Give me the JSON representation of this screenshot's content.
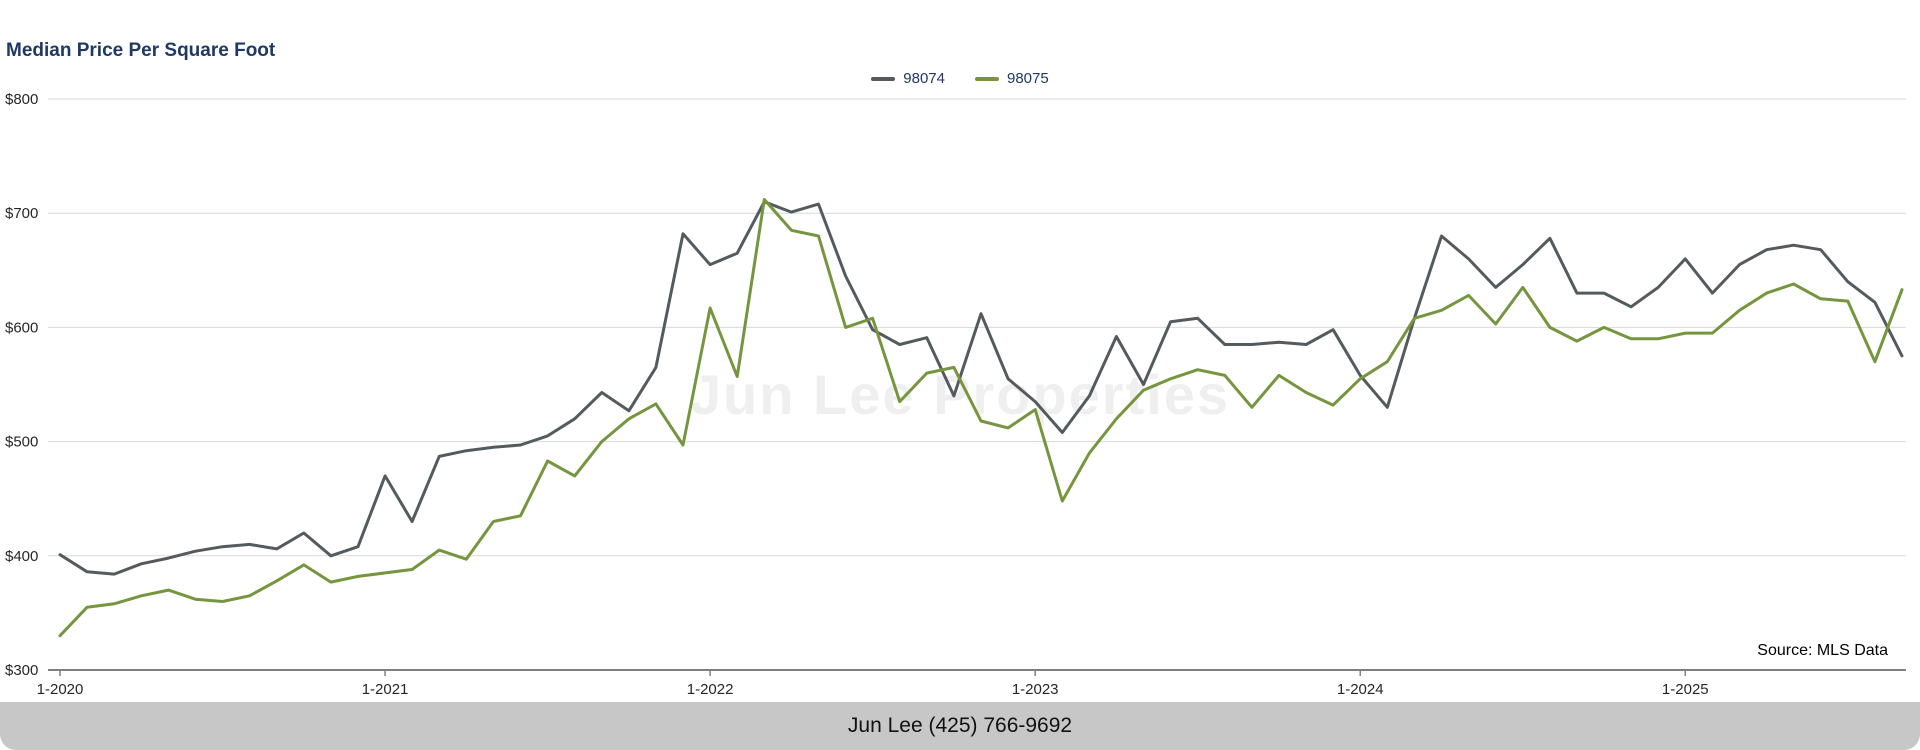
{
  "page": {
    "title": "Median Price Per Square Foot",
    "watermark": "Jun Lee Properties",
    "source_note": "Source: MLS Data",
    "footer_text": "Jun Lee (425) 766-9692"
  },
  "colors": {
    "title_text": "#1f3864",
    "gridline": "#d9d9d9",
    "axis_line": "#7f7f7f",
    "footer_bg": "#c7c7c7",
    "series_98074": "#535b5f",
    "series_98075": "#75963e"
  },
  "chart_data": {
    "type": "line",
    "title": "Median Price Per Square Foot",
    "xlabel": "",
    "ylabel": "",
    "grid": true,
    "legend_position": "top-center",
    "ylim": [
      300,
      800
    ],
    "y_ticks": [
      300,
      400,
      500,
      600,
      700,
      800
    ],
    "y_tick_labels": [
      "$300",
      "$400",
      "$500",
      "$600",
      "$700",
      "$800"
    ],
    "x_tick_positions": [
      0,
      12,
      24,
      36,
      48,
      60
    ],
    "x_tick_labels": [
      "1-2020",
      "1-2021",
      "1-2022",
      "1-2023",
      "1-2024",
      "1-2025"
    ],
    "x": [
      "1-2020",
      "2-2020",
      "3-2020",
      "4-2020",
      "5-2020",
      "6-2020",
      "7-2020",
      "8-2020",
      "9-2020",
      "10-2020",
      "11-2020",
      "12-2020",
      "1-2021",
      "2-2021",
      "3-2021",
      "4-2021",
      "5-2021",
      "6-2021",
      "7-2021",
      "8-2021",
      "9-2021",
      "10-2021",
      "11-2021",
      "12-2021",
      "1-2022",
      "2-2022",
      "3-2022",
      "4-2022",
      "5-2022",
      "6-2022",
      "7-2022",
      "8-2022",
      "9-2022",
      "10-2022",
      "11-2022",
      "12-2022",
      "1-2023",
      "2-2023",
      "3-2023",
      "4-2023",
      "5-2023",
      "6-2023",
      "7-2023",
      "8-2023",
      "9-2023",
      "10-2023",
      "11-2023",
      "12-2023",
      "1-2024",
      "2-2024",
      "3-2024",
      "4-2024",
      "5-2024",
      "6-2024",
      "7-2024",
      "8-2024",
      "9-2024",
      "10-2024",
      "11-2024",
      "12-2024",
      "1-2025",
      "2-2025",
      "3-2025",
      "4-2025",
      "5-2025",
      "6-2025",
      "7-2025",
      "8-2025",
      "9-2025"
    ],
    "series": [
      {
        "name": "98074",
        "color": "#535b5f",
        "values": [
          401,
          386,
          384,
          393,
          398,
          404,
          408,
          410,
          406,
          420,
          400,
          408,
          470,
          430,
          487,
          492,
          495,
          497,
          505,
          520,
          543,
          527,
          565,
          682,
          655,
          665,
          710,
          701,
          708,
          645,
          598,
          585,
          591,
          540,
          612,
          555,
          535,
          508,
          540,
          592,
          550,
          605,
          608,
          585,
          585,
          587,
          585,
          598,
          558,
          530,
          608,
          680,
          660,
          635,
          655,
          678,
          630,
          630,
          618,
          635,
          660,
          630,
          655,
          668,
          672,
          668,
          640,
          622,
          575
        ]
      },
      {
        "name": "98075",
        "color": "#75963e",
        "values": [
          330,
          355,
          358,
          365,
          370,
          362,
          360,
          365,
          378,
          392,
          377,
          382,
          385,
          388,
          405,
          397,
          430,
          435,
          483,
          470,
          500,
          520,
          533,
          497,
          617,
          557,
          712,
          685,
          680,
          600,
          608,
          535,
          560,
          565,
          518,
          512,
          528,
          448,
          490,
          520,
          545,
          555,
          563,
          558,
          530,
          558,
          543,
          532,
          555,
          570,
          608,
          615,
          628,
          603,
          635,
          600,
          588,
          600,
          590,
          590,
          595,
          595,
          615,
          630,
          638,
          625,
          623,
          570,
          633
        ]
      }
    ]
  }
}
